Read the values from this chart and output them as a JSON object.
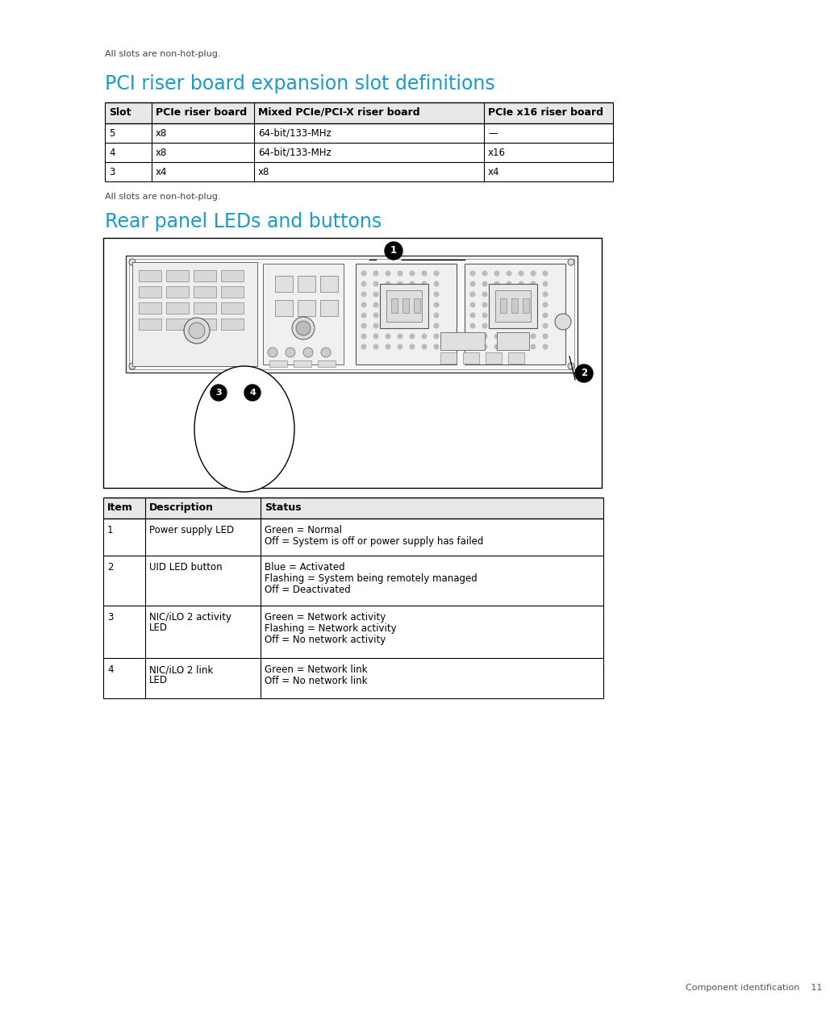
{
  "bg_color": "#ffffff",
  "top_note": "All slots are non-hot-plug.",
  "section1_title": "PCI riser board expansion slot definitions",
  "section1_title_color": "#1a9bc9",
  "table1_headers": [
    "Slot",
    "PCIe riser board",
    "Mixed PCIe/PCI-X riser board",
    "PCIe x16 riser board"
  ],
  "table1_rows": [
    [
      "5",
      "x8",
      "64-bit/133-MHz",
      "—"
    ],
    [
      "4",
      "x8",
      "64-bit/133-MHz",
      "x16"
    ],
    [
      "3",
      "x4",
      "x8",
      "x4"
    ]
  ],
  "bottom_note1": "All slots are non-hot-plug.",
  "section2_title": "Rear panel LEDs and buttons",
  "section2_title_color": "#1a9bc9",
  "table2_headers": [
    "Item",
    "Description",
    "Status"
  ],
  "table2_rows": [
    [
      "1",
      "Power supply LED",
      "Green = Normal\nOff = System is off or power supply has failed"
    ],
    [
      "2",
      "UID LED button",
      "Blue = Activated\nFlashing = System being remotely managed\nOff = Deactivated"
    ],
    [
      "3",
      "NIC/iLO 2 activity\nLED",
      "Green = Network activity\nFlashing = Network activity\nOff = No network activity"
    ],
    [
      "4",
      "NIC/iLO 2 link\nLED",
      "Green = Network link\nOff = No network link"
    ]
  ],
  "footer_text": "Component identification    11",
  "heading_fontsize": 17,
  "body_fontsize": 8.5,
  "note_fontsize": 8,
  "header_fontsize": 9
}
